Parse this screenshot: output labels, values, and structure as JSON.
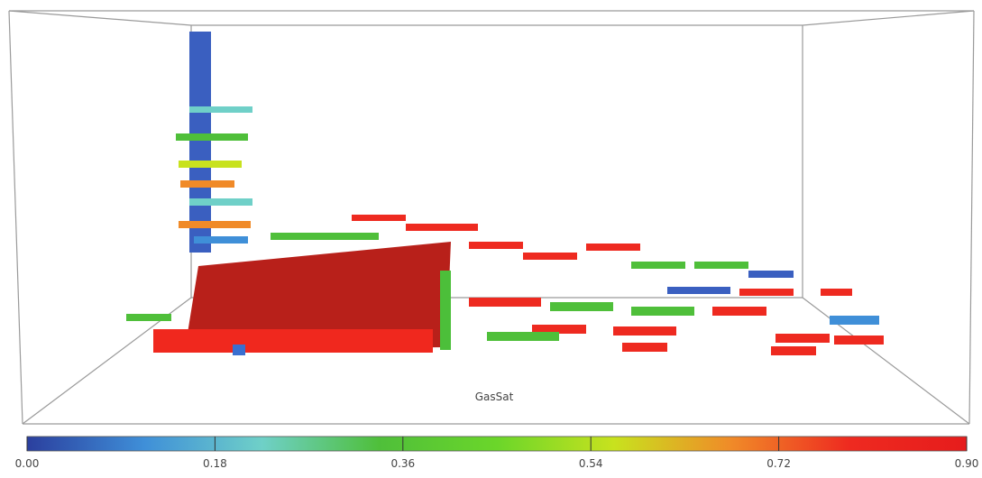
{
  "scene": {
    "label": "GasSat"
  },
  "colorbar": {
    "range": [
      0,
      0.9
    ],
    "colors": [
      "#2b3f9e",
      "#3f8fd8",
      "#6fd0c8",
      "#4fbf3a",
      "#6bd62a",
      "#c8e21e",
      "#f08a28",
      "#ee2a20",
      "#e61c1c"
    ],
    "ticks": [
      {
        "value": 0,
        "label": "0.00"
      },
      {
        "value": 0.18,
        "label": "0.18"
      },
      {
        "value": 0.36,
        "label": "0.36"
      },
      {
        "value": 0.54,
        "label": "0.54"
      },
      {
        "value": 0.72,
        "label": "0.72"
      },
      {
        "value": 0.9,
        "label": "0.90"
      }
    ]
  }
}
